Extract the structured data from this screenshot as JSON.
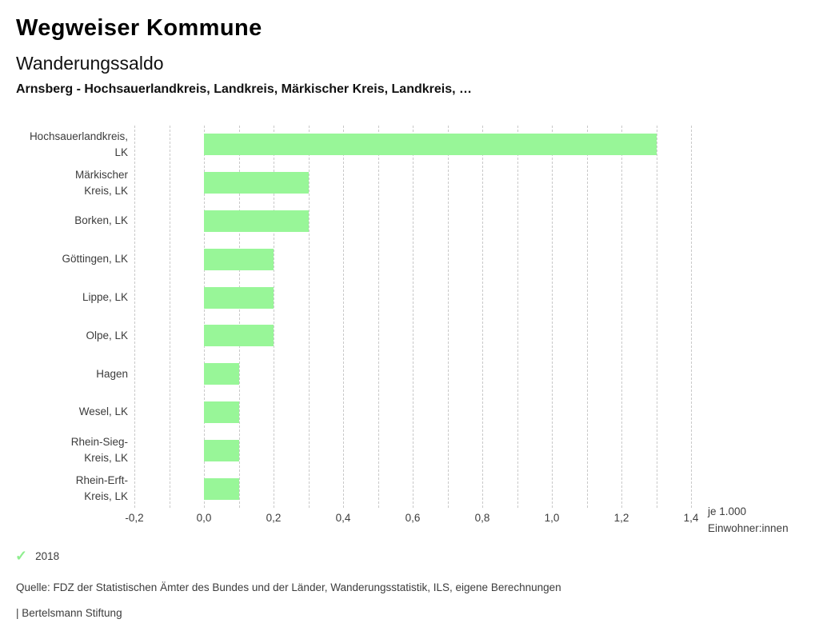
{
  "header": {
    "app_title": "Wegweiser Kommune",
    "chart_title": "Wanderungssaldo",
    "chart_subtitle": "Arnsberg - Hochsauerlandkreis, Landkreis, Märkischer Kreis, Landkreis, …"
  },
  "chart_data": {
    "type": "bar",
    "orientation": "horizontal",
    "title": "Wanderungssaldo",
    "categories": [
      "Hochsauerlandkreis, LK",
      "Märkischer Kreis, LK",
      "Borken, LK",
      "Göttingen, LK",
      "Lippe, LK",
      "Olpe, LK",
      "Hagen",
      "Wesel, LK",
      "Rhein-Sieg-Kreis, LK",
      "Rhein-Erft-Kreis, LK"
    ],
    "category_label_lines": [
      [
        "Hochsauerlandkreis,",
        "LK"
      ],
      [
        "Märkischer",
        "Kreis, LK"
      ],
      [
        "Borken, LK"
      ],
      [
        "Göttingen, LK"
      ],
      [
        "Lippe, LK"
      ],
      [
        "Olpe, LK"
      ],
      [
        "Hagen"
      ],
      [
        "Wesel, LK"
      ],
      [
        "Rhein-Sieg-",
        "Kreis, LK"
      ],
      [
        "Rhein-Erft-",
        "Kreis, LK"
      ]
    ],
    "series": [
      {
        "name": "2018",
        "values": [
          1.3,
          0.3,
          0.3,
          0.2,
          0.2,
          0.2,
          0.1,
          0.1,
          0.1,
          0.1
        ]
      }
    ],
    "xlabel": "je 1.000 Einwohner:innen",
    "xlabel_lines": [
      "je 1.000",
      "Einwohner:innen"
    ],
    "xlim": [
      -0.2,
      1.4
    ],
    "grid": true,
    "grid_step": 0.1,
    "x_ticks": [
      {
        "value": -0.2,
        "label": "-0,2"
      },
      {
        "value": 0.0,
        "label": "0,0"
      },
      {
        "value": 0.2,
        "label": "0,2"
      },
      {
        "value": 0.4,
        "label": "0,4"
      },
      {
        "value": 0.6,
        "label": "0,6"
      },
      {
        "value": 0.8,
        "label": "0,8"
      },
      {
        "value": 1.0,
        "label": "1,0"
      },
      {
        "value": 1.2,
        "label": "1,2"
      },
      {
        "value": 1.4,
        "label": "1,4"
      }
    ],
    "bar_color": "#98f698",
    "gridline_color": "#c9c9c9"
  },
  "legend": {
    "check_icon": "✓",
    "year_label": "2018"
  },
  "footer": {
    "source": "Quelle: FDZ der Statistischen Ämter des Bundes und der Länder, Wanderungsstatistik, ILS, eigene Berechnungen",
    "attribution": "| Bertelsmann Stiftung"
  }
}
